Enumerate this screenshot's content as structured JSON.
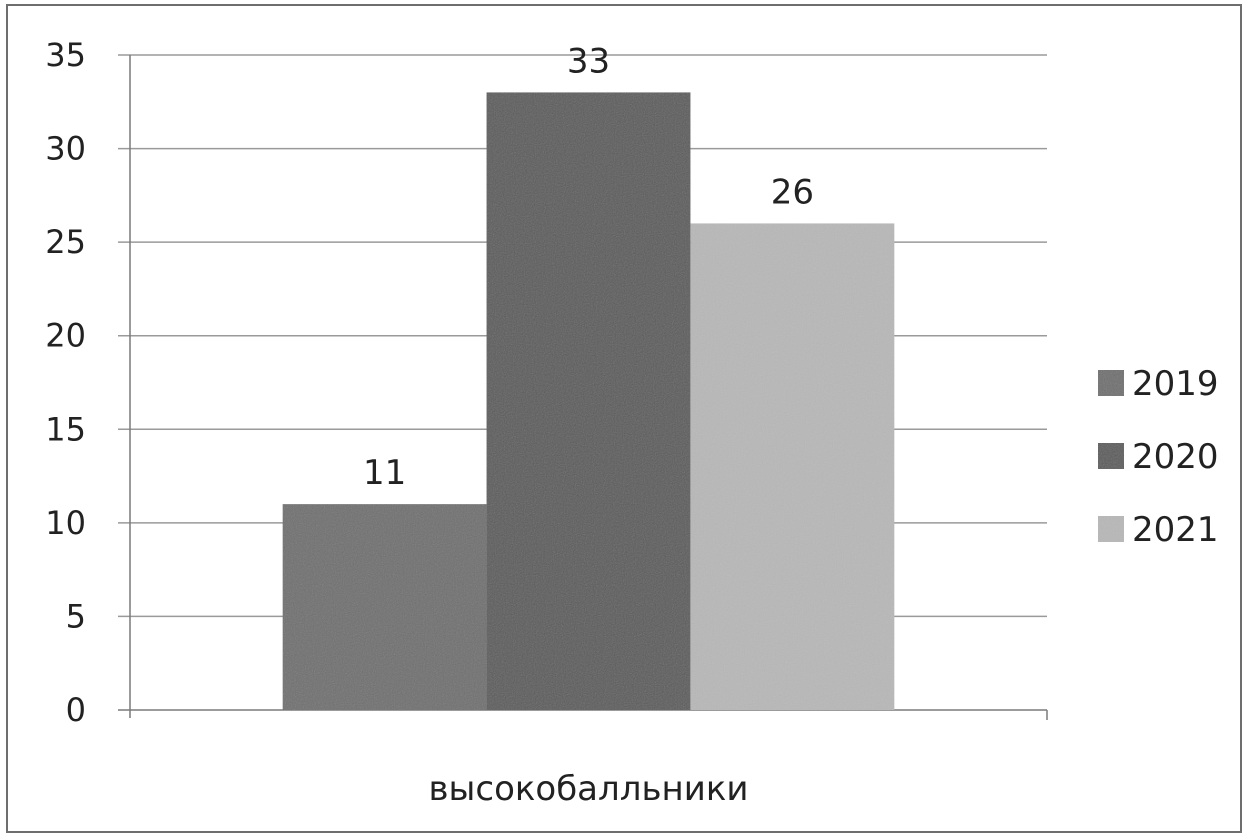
{
  "chart_data": {
    "type": "bar",
    "categories": [
      "высокобалльники"
    ],
    "series": [
      {
        "name": "2019",
        "values": [
          11
        ],
        "color": "#6f6f6f"
      },
      {
        "name": "2020",
        "values": [
          33
        ],
        "color": "#5c5c5c"
      },
      {
        "name": "2021",
        "values": [
          26
        ],
        "color": "#b8b8b8"
      }
    ],
    "title": "",
    "xlabel": "",
    "ylabel": "",
    "ylim": [
      0,
      35
    ],
    "yticks": [
      0,
      5,
      10,
      15,
      20,
      25,
      30,
      35
    ],
    "grid": true,
    "legend": "right",
    "data_labels": true
  }
}
